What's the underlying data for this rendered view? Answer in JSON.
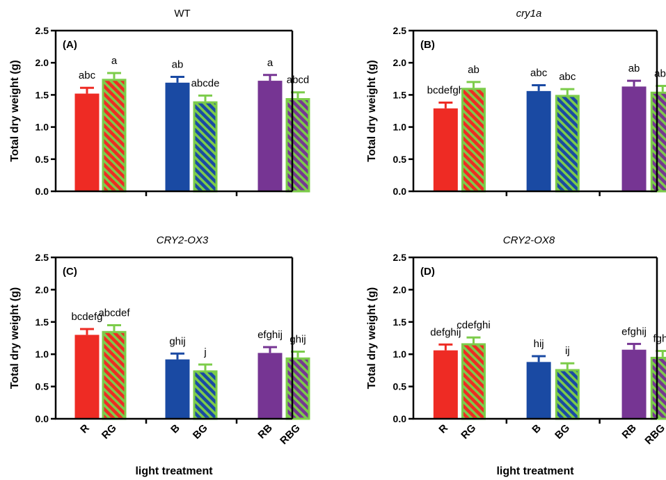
{
  "colors": {
    "R": "#ee2b24",
    "B": "#1a4aa3",
    "RB": "#763593",
    "green": "#7ccc4a"
  },
  "chart_data": [
    {
      "type": "bar",
      "panel": "(A)",
      "title": "WT",
      "title_italic": false,
      "categories": [
        "R",
        "RG",
        "B",
        "BG",
        "RB",
        "RBG"
      ],
      "values": [
        1.52,
        1.75,
        1.69,
        1.4,
        1.72,
        1.45
      ],
      "errors": [
        0.09,
        0.09,
        0.09,
        0.09,
        0.09,
        0.09
      ],
      "annotations": [
        "abc",
        "a",
        "ab",
        "abcde",
        "a",
        "abcd"
      ],
      "ylabel": "Total dry weight (g)",
      "xlabel": "",
      "ylim": [
        0,
        2.5
      ],
      "yticks": [
        "0.0",
        "0.5",
        "1.0",
        "1.5",
        "2.0",
        "2.5"
      ],
      "show_x_tick_labels": false
    },
    {
      "type": "bar",
      "panel": "(B)",
      "title": "cry1a",
      "title_italic": true,
      "categories": [
        "R",
        "RG",
        "B",
        "BG",
        "RB",
        "RBG"
      ],
      "values": [
        1.29,
        1.61,
        1.56,
        1.5,
        1.63,
        1.55
      ],
      "errors": [
        0.09,
        0.09,
        0.09,
        0.09,
        0.09,
        0.09
      ],
      "annotations": [
        "bcdefgh",
        "ab",
        "abc",
        "abc",
        "ab",
        "abc"
      ],
      "ylabel": "Total dry weight (g)",
      "xlabel": "",
      "ylim": [
        0,
        2.5
      ],
      "yticks": [
        "0.0",
        "0.5",
        "1.0",
        "1.5",
        "2.0",
        "2.5"
      ],
      "show_x_tick_labels": false
    },
    {
      "type": "bar",
      "panel": "(C)",
      "title": "CRY2-OX3",
      "title_italic": true,
      "categories": [
        "R",
        "RG",
        "B",
        "BG",
        "RB",
        "RBG"
      ],
      "values": [
        1.3,
        1.36,
        0.92,
        0.75,
        1.02,
        0.95
      ],
      "errors": [
        0.09,
        0.09,
        0.09,
        0.09,
        0.09,
        0.09
      ],
      "annotations": [
        "bcdefg",
        "abcdef",
        "ghij",
        "j",
        "efghij",
        "ghij"
      ],
      "ylabel": "Total dry weight (g)",
      "xlabel": "light treatment",
      "ylim": [
        0,
        2.5
      ],
      "yticks": [
        "0.0",
        "0.5",
        "1.0",
        "1.5",
        "2.0",
        "2.5"
      ],
      "show_x_tick_labels": true
    },
    {
      "type": "bar",
      "panel": "(D)",
      "title": "CRY2-OX8",
      "title_italic": true,
      "categories": [
        "R",
        "RG",
        "B",
        "BG",
        "RB",
        "RBG"
      ],
      "values": [
        1.06,
        1.17,
        0.88,
        0.77,
        1.07,
        0.96
      ],
      "errors": [
        0.09,
        0.09,
        0.09,
        0.09,
        0.09,
        0.09
      ],
      "annotations": [
        "defghij",
        "cdefghi",
        "hij",
        "ij",
        "efghij",
        "fghij"
      ],
      "ylabel": "Total dry weight (g)",
      "xlabel": "light treatment",
      "ylim": [
        0,
        2.5
      ],
      "yticks": [
        "0.0",
        "0.5",
        "1.0",
        "1.5",
        "2.0",
        "2.5"
      ],
      "show_x_tick_labels": true
    }
  ]
}
